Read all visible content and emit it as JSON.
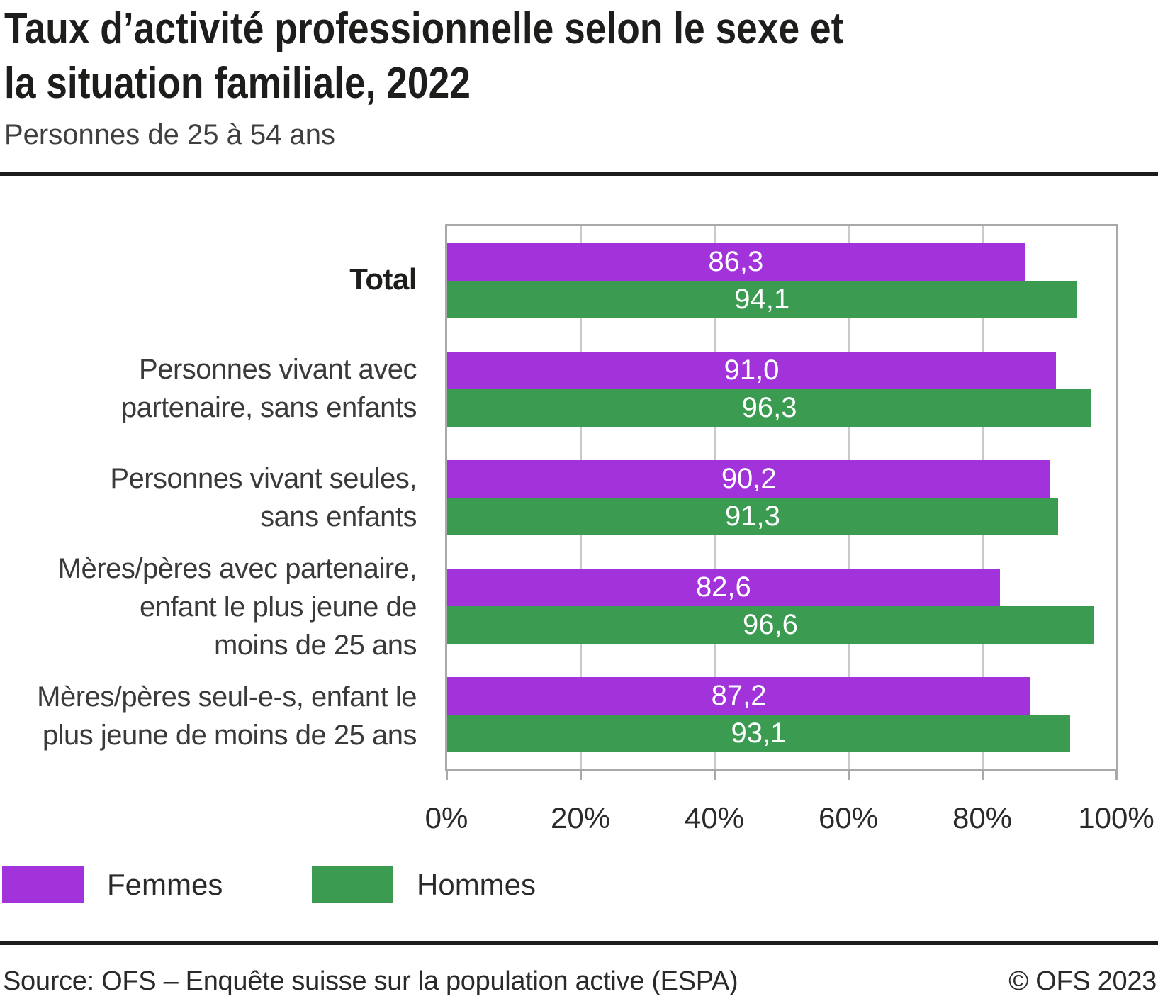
{
  "header": {
    "title_line1": "Taux d’activité professionnelle selon le sexe et",
    "title_line2": "la situation familiale, 2022",
    "subtitle": "Personnes de 25 à 54 ans"
  },
  "chart_data": {
    "type": "bar",
    "orientation": "horizontal",
    "title": "Taux d’activité professionnelle selon le sexe et la situation familiale, 2022",
    "subtitle": "Personnes de 25 à 54 ans",
    "categories": [
      "Total",
      "Personnes vivant avec partenaire, sans enfants",
      "Personnes vivant seules, sans enfants",
      "Mères/pères avec partenaire, enfant le plus jeune de moins de 25 ans",
      "Mères/pères seul-e-s, enfant le plus jeune de moins de 25 ans"
    ],
    "category_lines": [
      [
        "Total"
      ],
      [
        "Personnes vivant avec",
        "partenaire, sans enfants"
      ],
      [
        "Personnes vivant seules,",
        "sans enfants"
      ],
      [
        "Mères/pères avec partenaire,",
        "enfant le plus jeune de",
        "moins de 25 ans"
      ],
      [
        "Mères/pères seul-e-s, enfant le",
        "plus jeune de moins de 25 ans"
      ]
    ],
    "series": [
      {
        "name": "Femmes",
        "color": "#a233db",
        "values": [
          86.3,
          91.0,
          90.2,
          82.6,
          87.2
        ]
      },
      {
        "name": "Hommes",
        "color": "#3a9b51",
        "values": [
          94.1,
          96.3,
          91.3,
          96.6,
          93.1
        ]
      }
    ],
    "value_labels": {
      "Femmes": [
        "86,3",
        "91,0",
        "90,2",
        "82,6",
        "87,2"
      ],
      "Hommes": [
        "94,1",
        "96,3",
        "91,3",
        "96,6",
        "93,1"
      ]
    },
    "x_axis": {
      "min": 0,
      "max": 100,
      "ticks": [
        "0%",
        "20%",
        "40%",
        "60%",
        "80%",
        "100%"
      ]
    },
    "grid": "vertical",
    "legend_position": "bottom-left"
  },
  "footer": {
    "source": "Source: OFS – Enquête suisse sur la population active (ESPA)",
    "copyright": "© OFS 2023"
  }
}
